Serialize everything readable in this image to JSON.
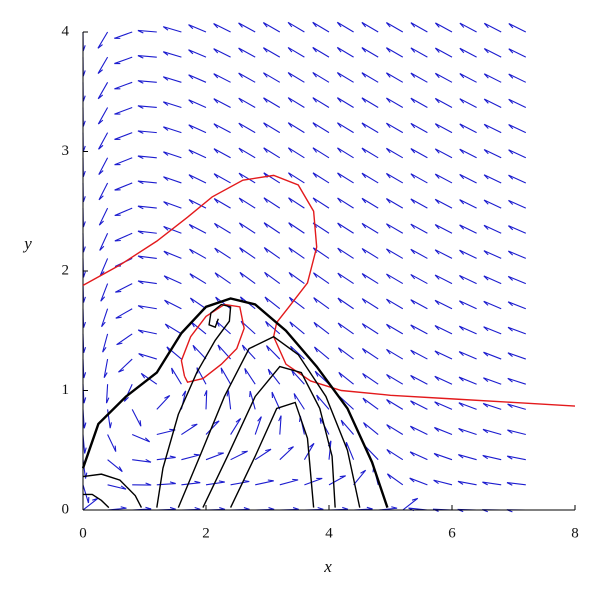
{
  "chart_data": {
    "type": "phase-portrait",
    "xlabel": "x",
    "ylabel": "y",
    "xlim": [
      0,
      8
    ],
    "ylim": [
      0,
      4
    ],
    "xticks": [
      0,
      2,
      4,
      6,
      8
    ],
    "yticks": [
      0,
      1,
      2,
      3,
      4
    ],
    "field_color": "#1c1ccf",
    "series": [
      {
        "color": "#e31a1c",
        "x": [
          0,
          0.6,
          1.2,
          1.7,
          2.1,
          2.6,
          3.1,
          3.5,
          3.75,
          3.8,
          3.65,
          3.35,
          3.15,
          3.1,
          3.3,
          3.7,
          4.2,
          5,
          6,
          7,
          8
        ],
        "y": [
          1.88,
          2.05,
          2.25,
          2.45,
          2.62,
          2.76,
          2.8,
          2.72,
          2.5,
          2.2,
          1.9,
          1.7,
          1.57,
          1.45,
          1.22,
          1.08,
          1.0,
          0.96,
          0.93,
          0.9,
          0.87
        ]
      },
      {
        "color": "#e31a1c",
        "x": [
          1.65,
          1.6,
          1.75,
          2.0,
          2.3,
          2.55,
          2.62,
          2.5,
          2.25,
          1.95,
          1.7,
          1.65
        ],
        "y": [
          1.12,
          1.25,
          1.45,
          1.62,
          1.72,
          1.7,
          1.52,
          1.35,
          1.22,
          1.1,
          1.07,
          1.12
        ]
      },
      {
        "color": "#000000",
        "x": [
          0,
          0.25,
          0.7,
          1.2,
          1.6,
          2.0,
          2.4,
          2.8,
          3.3,
          3.8,
          4.3,
          4.7,
          4.95
        ],
        "y": [
          0.35,
          0.72,
          0.95,
          1.15,
          1.48,
          1.7,
          1.77,
          1.72,
          1.5,
          1.2,
          0.85,
          0.4,
          0.02
        ]
      },
      {
        "color": "#000000",
        "x": [
          1.2,
          1.3,
          1.55,
          1.85,
          2.15,
          2.38,
          2.4,
          2.25,
          2.08,
          2.05,
          2.15,
          2.2
        ],
        "y": [
          0.02,
          0.35,
          0.8,
          1.15,
          1.42,
          1.58,
          1.7,
          1.72,
          1.65,
          1.55,
          1.53,
          1.6
        ]
      },
      {
        "color": "#000000",
        "x": [
          1.55,
          1.9,
          2.3,
          2.7,
          3.1,
          3.5,
          3.95,
          4.3,
          4.5
        ],
        "y": [
          0.02,
          0.45,
          0.95,
          1.35,
          1.45,
          1.3,
          0.95,
          0.5,
          0.02
        ]
      },
      {
        "color": "#000000",
        "x": [
          1.95,
          2.35,
          2.8,
          3.2,
          3.55,
          3.85,
          4.05,
          4.1
        ],
        "y": [
          0.02,
          0.45,
          0.95,
          1.2,
          1.15,
          0.85,
          0.45,
          0.02
        ]
      },
      {
        "color": "#000000",
        "x": [
          2.4,
          2.8,
          3.15,
          3.45,
          3.65,
          3.75
        ],
        "y": [
          0.02,
          0.45,
          0.85,
          0.9,
          0.6,
          0.02
        ]
      },
      {
        "color": "#000000",
        "x": [
          0,
          0.3,
          0.6,
          0.85,
          0.95
        ],
        "y": [
          0.28,
          0.3,
          0.25,
          0.12,
          0.02
        ]
      },
      {
        "color": "#000000",
        "x": [
          0,
          0.15,
          0.3,
          0.42
        ],
        "y": [
          0.13,
          0.13,
          0.08,
          0.02
        ]
      }
    ]
  }
}
